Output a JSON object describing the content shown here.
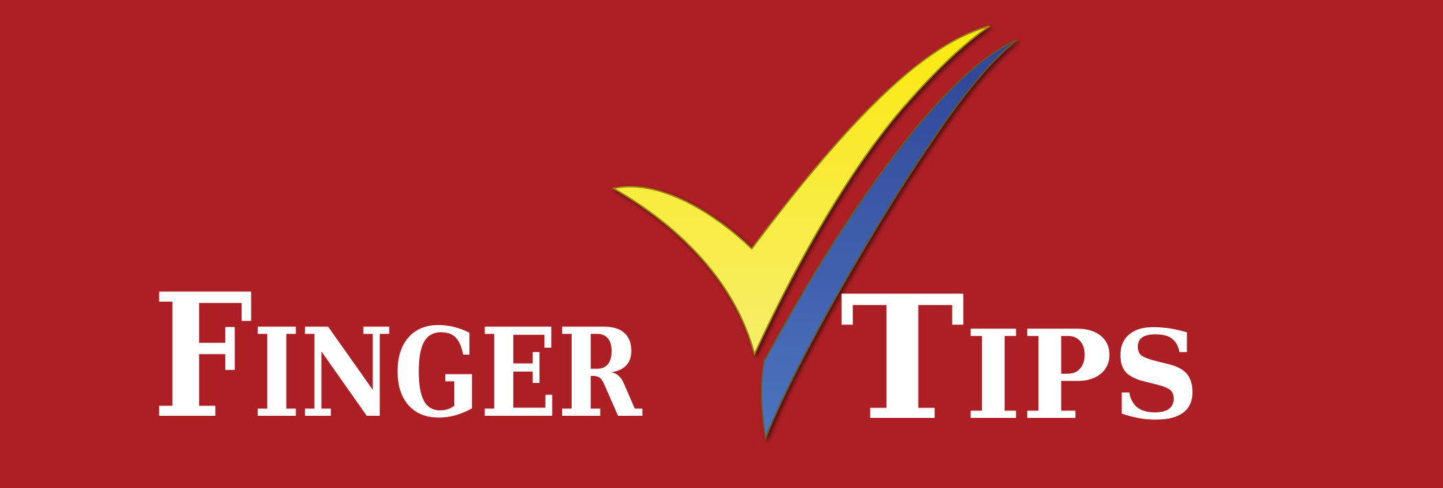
{
  "logo": {
    "word_left_cap": "F",
    "word_left_rest": "INGER",
    "word_right_cap": "T",
    "word_right_rest": "IPS",
    "check_icon": "checkmark-icon"
  },
  "colors": {
    "background": "#ac1f24",
    "text": "#ffffff",
    "check_yellow": "#f7ea3c",
    "check_blue": "#3d5ba8"
  }
}
